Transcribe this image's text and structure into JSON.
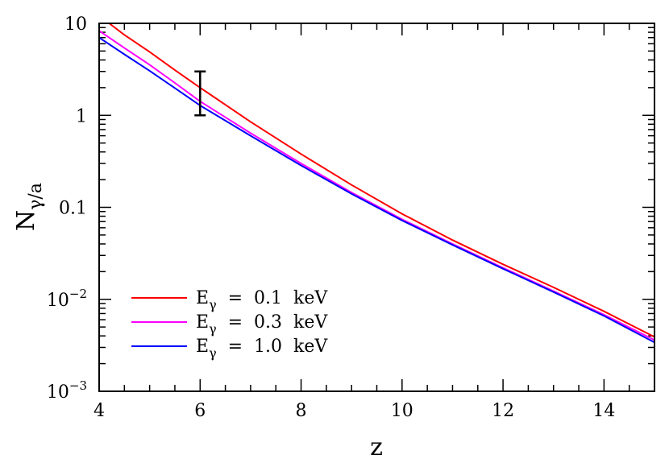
{
  "chart_data": {
    "type": "line",
    "title": "",
    "xlabel": "z",
    "ylabel": {
      "main": "N",
      "subscript": "γ/a"
    },
    "xlim": [
      4,
      15
    ],
    "ylim": [
      0.001,
      10
    ],
    "yscale": "log",
    "x_ticks": [
      4,
      6,
      8,
      10,
      12,
      14
    ],
    "y_ticks": [
      {
        "value": 10,
        "label": "10"
      },
      {
        "value": 1,
        "label": "1"
      },
      {
        "value": 0.1,
        "label": "0.1"
      },
      {
        "value": 0.01,
        "base": "10",
        "exp": "−2"
      },
      {
        "value": 0.001,
        "base": "10",
        "exp": "−3"
      }
    ],
    "legend_placement": "bottom-left",
    "series": [
      {
        "name": "E_γ = 0.1 keV",
        "legend": {
          "prefix": "E",
          "sub": "γ",
          "suffix": " = 0.1 keV"
        },
        "color": "#ff0000",
        "x": [
          4.2,
          4.5,
          5,
          5.5,
          6,
          7,
          8,
          9,
          10,
          11,
          12,
          13,
          14,
          15
        ],
        "y": [
          10,
          7.5,
          4.9,
          3.1,
          2.0,
          0.85,
          0.38,
          0.175,
          0.085,
          0.044,
          0.024,
          0.0135,
          0.0074,
          0.0039
        ]
      },
      {
        "name": "E_γ = 0.3 keV",
        "legend": {
          "prefix": "E",
          "sub": "γ",
          "suffix": " = 0.3 keV"
        },
        "color": "#ff00ff",
        "x": [
          4,
          4.5,
          5,
          5.5,
          6,
          7,
          8,
          9,
          10,
          11,
          12,
          13,
          14,
          15
        ],
        "y": [
          8.3,
          5.4,
          3.55,
          2.25,
          1.42,
          0.64,
          0.3,
          0.145,
          0.074,
          0.04,
          0.022,
          0.0123,
          0.0068,
          0.0036
        ]
      },
      {
        "name": "E_γ = 1.0 keV",
        "legend": {
          "prefix": "E",
          "sub": "γ",
          "suffix": " = 1.0 keV"
        },
        "color": "#0000ff",
        "x": [
          4,
          4.5,
          5,
          5.5,
          6,
          7,
          8,
          9,
          10,
          11,
          12,
          13,
          14,
          15
        ],
        "y": [
          7.0,
          4.6,
          3.05,
          1.98,
          1.28,
          0.6,
          0.285,
          0.14,
          0.072,
          0.039,
          0.0215,
          0.012,
          0.0066,
          0.0034
        ]
      }
    ],
    "error_bar": {
      "x": 6,
      "y_low": 1.0,
      "y_high": 3.0,
      "color": "#000000"
    }
  }
}
